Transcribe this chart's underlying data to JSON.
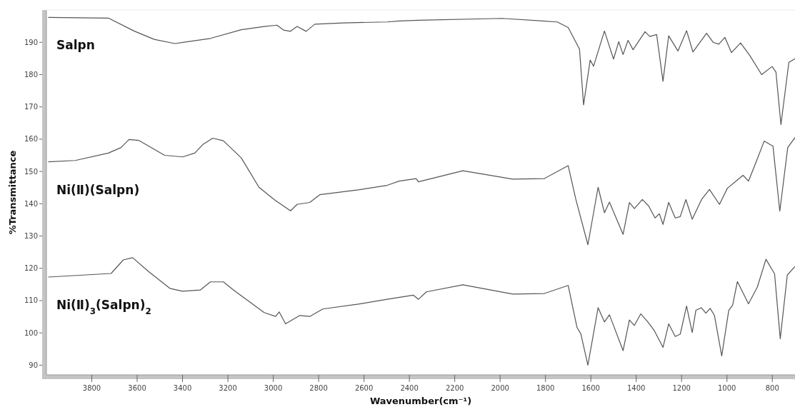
{
  "chart_data": {
    "type": "line",
    "xlabel": "Wavenumber(cm⁻¹)",
    "ylabel": "%Transmittance",
    "xlim": [
      4000,
      700
    ],
    "ylim": [
      87,
      200
    ],
    "xticks": [
      3800,
      3600,
      3400,
      3200,
      3000,
      2800,
      2600,
      2400,
      2200,
      2000,
      1800,
      1600,
      1400,
      1200,
      1000,
      800
    ],
    "yticks": [
      90,
      100,
      110,
      120,
      130,
      140,
      150,
      160,
      170,
      180,
      190
    ],
    "marker": "none",
    "line_style": "solid",
    "series": [
      {
        "name": "Salpn",
        "color": "#555555",
        "x": [
          3992,
          3727,
          3614,
          3525,
          3434,
          3277,
          3141,
          3040,
          2984,
          2955,
          2924,
          2895,
          2855,
          2817,
          2691,
          2498,
          2445,
          2360,
          1991,
          1748,
          1700,
          1650,
          1632,
          1603,
          1588,
          1540,
          1500,
          1477,
          1458,
          1436,
          1414,
          1361,
          1340,
          1310,
          1282,
          1257,
          1216,
          1178,
          1150,
          1090,
          1061,
          1036,
          1009,
          980,
          940,
          900,
          847,
          801,
          784,
          762,
          727,
          700
        ],
        "values": [
          197.7,
          197.5,
          193.5,
          190.9,
          189.6,
          191.2,
          193.9,
          194.9,
          195.3,
          193.8,
          193.4,
          194.9,
          193.4,
          195.6,
          196.0,
          196.3,
          196.6,
          196.8,
          197.4,
          196.3,
          194.6,
          187.9,
          170.6,
          184.5,
          182.6,
          193.5,
          184.8,
          190.2,
          186.2,
          190.6,
          187.7,
          193.3,
          191.8,
          192.4,
          177.9,
          192.0,
          187.3,
          193.6,
          187.0,
          192.8,
          190.0,
          189.4,
          191.5,
          186.8,
          189.8,
          186.0,
          180.0,
          182.5,
          180.8,
          164.5,
          183.8,
          184.9
        ]
      },
      {
        "name": "Ni(Ⅱ)(Salpn)",
        "color": "#555555",
        "x": [
          3992,
          3873,
          3727,
          3671,
          3636,
          3592,
          3479,
          3400,
          3346,
          3311,
          3267,
          3220,
          3141,
          3063,
          2996,
          2924,
          2895,
          2839,
          2795,
          2625,
          2498,
          2445,
          2370,
          2360,
          2164,
          1944,
          1805,
          1700,
          1666,
          1613,
          1568,
          1540,
          1518,
          1458,
          1430,
          1408,
          1373,
          1345,
          1317,
          1298,
          1282,
          1257,
          1228,
          1206,
          1181,
          1153,
          1112,
          1077,
          1033,
          998,
          929,
          905,
          871,
          836,
          797,
          767,
          732,
          700
        ],
        "values": [
          153.0,
          153.4,
          155.7,
          157.4,
          159.9,
          159.6,
          155.0,
          154.5,
          155.7,
          158.3,
          160.3,
          159.5,
          154.2,
          145.1,
          141.3,
          137.8,
          139.8,
          140.4,
          142.8,
          144.3,
          145.7,
          147.0,
          147.8,
          146.8,
          150.2,
          147.6,
          147.8,
          151.8,
          141.3,
          127.3,
          145.1,
          137.2,
          140.5,
          130.5,
          140.4,
          138.5,
          141.3,
          139.3,
          135.6,
          136.9,
          133.6,
          140.4,
          135.6,
          136.0,
          141.3,
          135.2,
          141.3,
          144.4,
          139.8,
          144.8,
          148.8,
          147.0,
          153.0,
          159.4,
          157.8,
          137.7,
          157.4,
          160.5
        ]
      },
      {
        "name": "Ni(Ⅱ)$_{3}$(Salpn)$_{2}$",
        "color": "#555555",
        "x": [
          3992,
          3715,
          3661,
          3620,
          3548,
          3456,
          3400,
          3321,
          3277,
          3220,
          3176,
          3040,
          2990,
          2974,
          2946,
          2883,
          2839,
          2782,
          2625,
          2498,
          2383,
          2360,
          2325,
          2164,
          1944,
          1805,
          1700,
          1661,
          1644,
          1613,
          1568,
          1540,
          1518,
          1458,
          1430,
          1408,
          1380,
          1350,
          1321,
          1282,
          1257,
          1228,
          1206,
          1178,
          1153,
          1137,
          1113,
          1093,
          1074,
          1055,
          1023,
          992,
          975,
          954,
          905,
          866,
          828,
          790,
          765,
          734,
          700
        ],
        "values": [
          117.3,
          118.4,
          122.6,
          123.3,
          118.9,
          113.8,
          112.9,
          113.3,
          115.8,
          115.8,
          113.3,
          106.3,
          105.1,
          106.5,
          102.8,
          105.4,
          105.1,
          107.4,
          108.9,
          110.4,
          111.7,
          110.4,
          112.7,
          114.9,
          112.0,
          112.2,
          114.7,
          101.7,
          99.7,
          90.0,
          107.8,
          103.4,
          105.6,
          94.5,
          104.0,
          102.3,
          105.9,
          103.5,
          100.8,
          95.5,
          102.8,
          98.9,
          99.6,
          108.3,
          100.1,
          107.0,
          107.8,
          106.1,
          107.6,
          105.4,
          92.9,
          107.0,
          108.6,
          115.9,
          109.0,
          114.2,
          122.8,
          118.3,
          98.2,
          117.9,
          120.6
        ]
      }
    ]
  }
}
